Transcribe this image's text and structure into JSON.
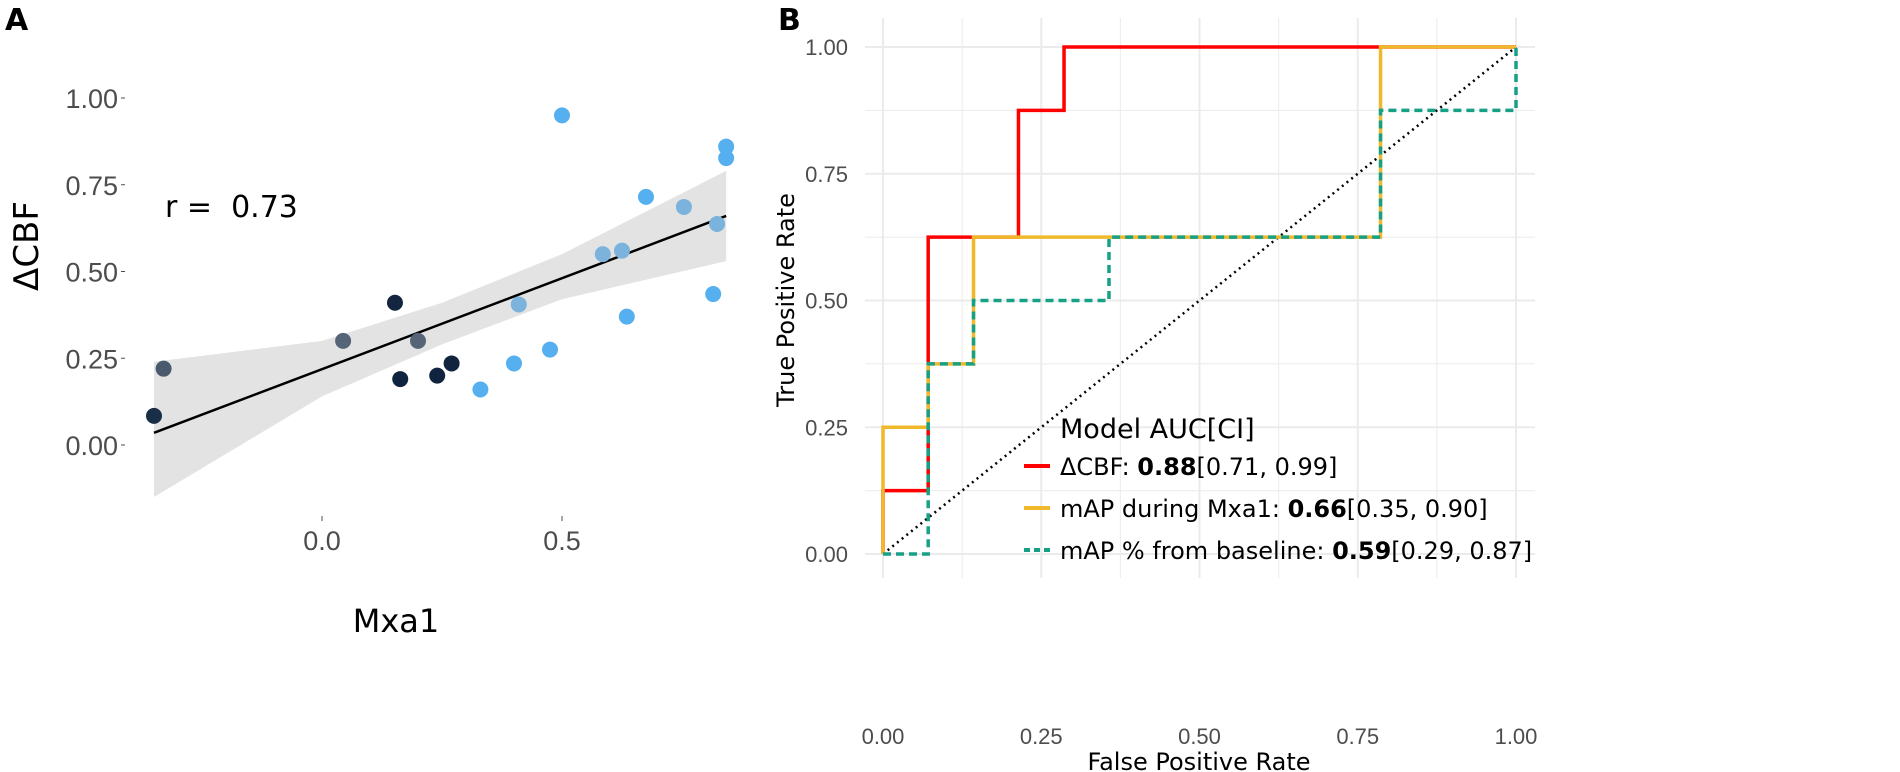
{
  "chart_data": [
    {
      "panel_label": "A",
      "type": "scatter",
      "xlabel": "Mxa1",
      "ylabel": "ΔCBF",
      "annotation": "r =  0.73",
      "xlim": [
        -0.35,
        0.842
      ],
      "ylim": [
        -0.15,
        1.05
      ],
      "xticks": [
        {
          "v": 0.0,
          "label": "0.0"
        },
        {
          "v": 0.5,
          "label": "0.5"
        }
      ],
      "yticks": [
        {
          "v": 0.0,
          "label": "0.00"
        },
        {
          "v": 0.25,
          "label": "0.25"
        },
        {
          "v": 0.5,
          "label": "0.50"
        },
        {
          "v": 0.75,
          "label": "0.75"
        },
        {
          "v": 1.0,
          "label": "1.00"
        }
      ],
      "grid": false,
      "points": [
        {
          "x": -0.35,
          "y": 0.084,
          "color": "#1a2e48"
        },
        {
          "x": -0.33,
          "y": 0.22,
          "color": "#4a5a6e"
        },
        {
          "x": 0.044,
          "y": 0.3,
          "color": "#566477"
        },
        {
          "x": 0.152,
          "y": 0.41,
          "color": "#14263f"
        },
        {
          "x": 0.163,
          "y": 0.19,
          "color": "#10243f"
        },
        {
          "x": 0.2,
          "y": 0.3,
          "color": "#566477"
        },
        {
          "x": 0.24,
          "y": 0.2,
          "color": "#10243f"
        },
        {
          "x": 0.27,
          "y": 0.235,
          "color": "#10243f"
        },
        {
          "x": 0.33,
          "y": 0.16,
          "color": "#56b0f0"
        },
        {
          "x": 0.4,
          "y": 0.235,
          "color": "#56b0f0"
        },
        {
          "x": 0.41,
          "y": 0.405,
          "color": "#7cb3dd"
        },
        {
          "x": 0.475,
          "y": 0.275,
          "color": "#56b0f0"
        },
        {
          "x": 0.5,
          "y": 0.95,
          "color": "#56b0f0"
        },
        {
          "x": 0.585,
          "y": 0.55,
          "color": "#7cb3dd"
        },
        {
          "x": 0.625,
          "y": 0.56,
          "color": "#7cb3dd"
        },
        {
          "x": 0.635,
          "y": 0.37,
          "color": "#56b0f0"
        },
        {
          "x": 0.675,
          "y": 0.715,
          "color": "#56b0f0"
        },
        {
          "x": 0.754,
          "y": 0.686,
          "color": "#7cb3dd"
        },
        {
          "x": 0.815,
          "y": 0.435,
          "color": "#56b0f0"
        },
        {
          "x": 0.823,
          "y": 0.637,
          "color": "#7cb3dd"
        },
        {
          "x": 0.842,
          "y": 0.86,
          "color": "#56b0f0"
        },
        {
          "x": 0.842,
          "y": 0.827,
          "color": "#56b0f0"
        }
      ],
      "fit_line": {
        "x": [
          -0.35,
          0.842
        ],
        "y": [
          0.035,
          0.66
        ]
      },
      "confidence_band": {
        "x": [
          -0.35,
          0.0,
          0.25,
          0.5,
          0.842
        ],
        "lower": [
          -0.15,
          0.14,
          0.29,
          0.42,
          0.53
        ],
        "upper": [
          0.24,
          0.3,
          0.41,
          0.55,
          0.79
        ]
      }
    },
    {
      "panel_label": "B",
      "type": "line",
      "xlabel": "False Positive Rate",
      "ylabel": "True Positive Rate",
      "xlim": [
        0,
        1
      ],
      "ylim": [
        0,
        1
      ],
      "ticks": [
        {
          "v": 0,
          "label": "0.00"
        },
        {
          "v": 0.25,
          "label": "0.25"
        },
        {
          "v": 0.5,
          "label": "0.50"
        },
        {
          "v": 0.75,
          "label": "0.75"
        },
        {
          "v": 1,
          "label": "1.00"
        }
      ],
      "grid": true,
      "legend": {
        "title": "Model AUC[CI]",
        "placement": "bottom-right",
        "entries": [
          {
            "name": "ΔCBF: ",
            "auc": "0.88",
            "ci": "[0.71, 0.99]"
          },
          {
            "name": "mAP during Mxa1: ",
            "auc": "0.66",
            "ci": "[0.35, 0.90]"
          },
          {
            "name": "mAP % from baseline: ",
            "auc": "0.59",
            "ci": "[0.29, 0.87]"
          }
        ]
      },
      "series": [
        {
          "name": "ΔCBF",
          "color": "#ff0000",
          "dash": "solid",
          "points": [
            [
              0,
              0
            ],
            [
              0,
              0.125
            ],
            [
              0.0714,
              0.125
            ],
            [
              0.0714,
              0.625
            ],
            [
              0.214,
              0.625
            ],
            [
              0.214,
              0.875
            ],
            [
              0.286,
              0.875
            ],
            [
              0.286,
              1
            ],
            [
              1,
              1
            ]
          ]
        },
        {
          "name": "mAP during Mxa1",
          "color": "#f0b92c",
          "dash": "solid",
          "points": [
            [
              0,
              0
            ],
            [
              0,
              0.25
            ],
            [
              0.0714,
              0.25
            ],
            [
              0.0714,
              0.375
            ],
            [
              0.143,
              0.375
            ],
            [
              0.143,
              0.625
            ],
            [
              0.786,
              0.625
            ],
            [
              0.786,
              1
            ],
            [
              1,
              1
            ]
          ]
        },
        {
          "name": "mAP % from baseline",
          "color": "#16a085",
          "dash": "dashed",
          "points": [
            [
              0,
              0
            ],
            [
              0.0714,
              0
            ],
            [
              0.0714,
              0.375
            ],
            [
              0.143,
              0.375
            ],
            [
              0.143,
              0.5
            ],
            [
              0.357,
              0.5
            ],
            [
              0.357,
              0.625
            ],
            [
              0.786,
              0.625
            ],
            [
              0.786,
              0.875
            ],
            [
              1,
              0.875
            ],
            [
              1,
              1
            ]
          ]
        },
        {
          "name": "chance",
          "color": "#000000",
          "dash": "dotted",
          "points": [
            [
              0,
              0
            ],
            [
              1,
              1
            ]
          ]
        }
      ]
    }
  ]
}
